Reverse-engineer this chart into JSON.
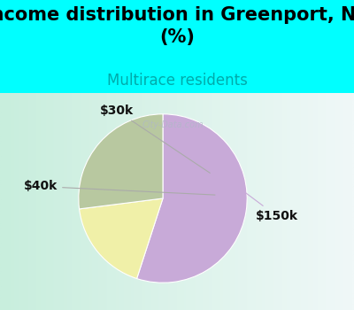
{
  "title": "Income distribution in Greenport, NY\n(%)",
  "subtitle": "Multirace residents",
  "title_fontsize": 15,
  "subtitle_fontsize": 12,
  "subtitle_color": "#00aaaa",
  "labels": [
    "$30k",
    "$40k",
    "$150k"
  ],
  "sizes": [
    18,
    27,
    55
  ],
  "colors": [
    "#f0f0a8",
    "#b8c8a0",
    "#c8aad8"
  ],
  "bg_top_color": "#00ffff",
  "chart_bg_left": "#c8eedd",
  "chart_bg_right": "#f0f8f8",
  "label_fontsize": 10,
  "watermark": "City-Data.com",
  "label_color": "#111111",
  "startangle": 90
}
